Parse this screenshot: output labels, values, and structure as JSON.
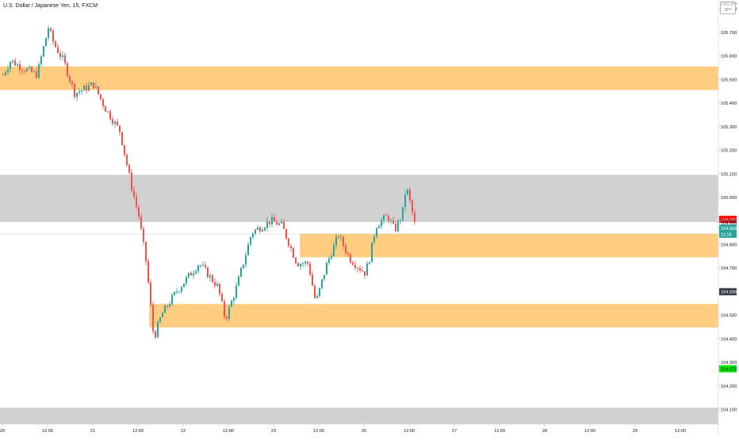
{
  "legend": "U.S. Dollar / Japanese Yen, 15, FXCM",
  "currency_box": {
    "top": "USD.JPY",
    "label": "JPY"
  },
  "colors": {
    "up": "#26a69a",
    "down": "#ef5350",
    "zone_orange": "#ffcc80",
    "zone_gray": "#d1d1d1",
    "axis_text": "#131722",
    "current_price_bg": "#26a69a",
    "red_label_bg": "#ff0000",
    "green_label_bg": "#00e600",
    "dark_label_bg": "#363a45"
  },
  "price_labels": [
    {
      "value": "104.906",
      "price": 104.906,
      "style": "red"
    },
    {
      "value": "104.900",
      "price": 104.89,
      "style": "plain"
    },
    {
      "value": "104.868",
      "price": 104.868,
      "style": "current"
    },
    {
      "value": "11:18",
      "price": 104.843,
      "style": "current-time"
    },
    {
      "value": "104.599",
      "price": 104.599,
      "style": "dark"
    },
    {
      "value": "104.272",
      "price": 104.272,
      "style": "green"
    }
  ],
  "chart_data": {
    "type": "candlestick",
    "title": "U.S. Dollar / Japanese Yen, 15, FXCM",
    "ylim": [
      104.037,
      105.837
    ],
    "y_ticks": [
      105.8,
      105.7,
      105.6,
      105.5,
      105.4,
      105.3,
      105.2,
      105.1,
      105.0,
      104.9,
      104.8,
      104.7,
      104.5,
      104.4,
      104.3,
      104.2,
      104.1
    ],
    "y_tick_labels": [
      "105.800",
      "105.700",
      "105.600",
      "105.500",
      "105.400",
      "105.300",
      "105.200",
      "105.100",
      "105.000",
      "104.900",
      "104.800",
      "104.700",
      "104.500",
      "104.400",
      "104.300",
      "104.200",
      "104.100"
    ],
    "x_labels": [
      "20",
      "12:00",
      "21",
      "12:00",
      "22",
      "12:00",
      "23",
      "12:00",
      "26",
      "12:00",
      "27",
      "12:00",
      "28",
      "12:00",
      "29",
      "12:00"
    ],
    "zones": [
      {
        "color": "orange",
        "from_price": 105.455,
        "to_price": 105.555,
        "x_start": "start",
        "x_end": "end"
      },
      {
        "color": "gray",
        "from_price": 104.895,
        "to_price": 105.095,
        "x_start": "start",
        "x_end": "end"
      },
      {
        "color": "orange",
        "from_price": 104.745,
        "to_price": 104.845,
        "x_start": "23 07:00",
        "x_end": "end"
      },
      {
        "color": "orange",
        "from_price": 104.447,
        "to_price": 104.547,
        "x_start": "21 15:00",
        "x_end": "end"
      },
      {
        "color": "gray",
        "from_price": 104.037,
        "to_price": 104.107,
        "x_start": "start",
        "x_end": "end"
      }
    ],
    "anchor_points": [
      {
        "t": "20 00:00",
        "p": 105.52
      },
      {
        "t": "20 02:00",
        "p": 105.58
      },
      {
        "t": "20 05:00",
        "p": 105.55
      },
      {
        "t": "20 09:00",
        "p": 105.52
      },
      {
        "t": "20 12:00",
        "p": 105.72
      },
      {
        "t": "20 13:30",
        "p": 105.65
      },
      {
        "t": "20 16:00",
        "p": 105.58
      },
      {
        "t": "20 19:00",
        "p": 105.44
      },
      {
        "t": "21 00:00",
        "p": 105.48
      },
      {
        "t": "21 03:00",
        "p": 105.38
      },
      {
        "t": "21 07:00",
        "p": 105.28
      },
      {
        "t": "21 10:00",
        "p": 105.05
      },
      {
        "t": "21 12:00",
        "p": 104.92
      },
      {
        "t": "21 14:00",
        "p": 104.72
      },
      {
        "t": "21 16:00",
        "p": 104.4
      },
      {
        "t": "21 18:00",
        "p": 104.5
      },
      {
        "t": "21 22:00",
        "p": 104.6
      },
      {
        "t": "22 04:00",
        "p": 104.72
      },
      {
        "t": "22 09:00",
        "p": 104.62
      },
      {
        "t": "22 11:00",
        "p": 104.48
      },
      {
        "t": "22 14:00",
        "p": 104.62
      },
      {
        "t": "22 18:00",
        "p": 104.85
      },
      {
        "t": "22 23:00",
        "p": 104.9
      },
      {
        "t": "23 02:00",
        "p": 104.88
      },
      {
        "t": "23 06:00",
        "p": 104.72
      },
      {
        "t": "23 09:00",
        "p": 104.72
      },
      {
        "t": "23 11:00",
        "p": 104.55
      },
      {
        "t": "23 14:00",
        "p": 104.72
      },
      {
        "t": "23 17:00",
        "p": 104.84
      },
      {
        "t": "23 20:00",
        "p": 104.74
      },
      {
        "t": "26 00:00",
        "p": 104.68
      },
      {
        "t": "26 01:00",
        "p": 104.72
      },
      {
        "t": "26 03:00",
        "p": 104.88
      },
      {
        "t": "26 06:00",
        "p": 104.92
      },
      {
        "t": "26 08:00",
        "p": 104.86
      },
      {
        "t": "26 10:00",
        "p": 104.93
      },
      {
        "t": "26 11:00",
        "p": 105.05
      },
      {
        "t": "26 12:00",
        "p": 104.98
      },
      {
        "t": "26 13:30",
        "p": 104.87
      }
    ]
  }
}
